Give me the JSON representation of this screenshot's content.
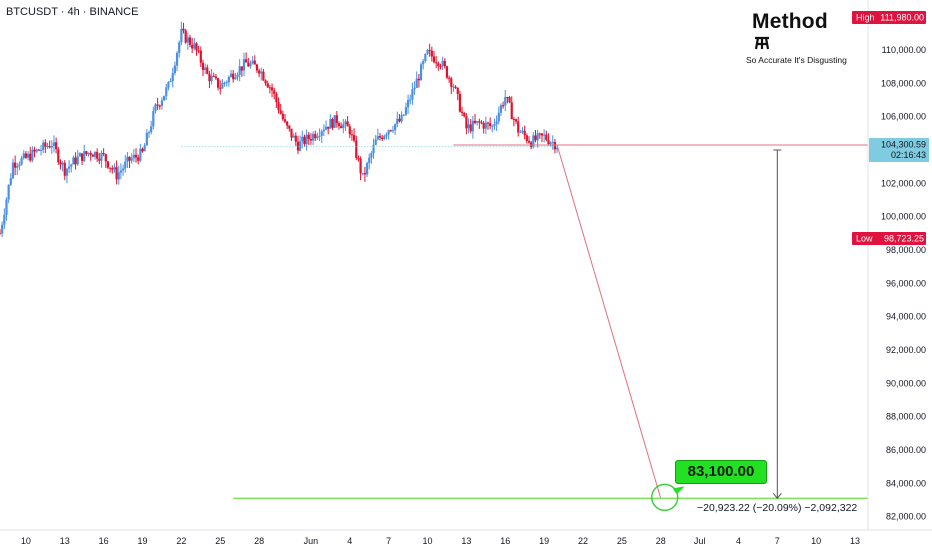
{
  "header": {
    "symbol_title": "BTCUSDT · 4h · BINANCE"
  },
  "brand": {
    "name": "Method",
    "tagline": "So Accurate It's Disgusting"
  },
  "colors": {
    "up_candle": "#4a90e2",
    "down_candle": "#e0122e",
    "target_line": "#7ee05a",
    "projection_line": "#e07080",
    "price_tag_current": "#7fcbe0",
    "tag_high_low": "#e0123e"
  },
  "chart_data": {
    "type": "candlestick",
    "symbol": "BTCUSDT",
    "interval": "4h",
    "exchange": "BINANCE",
    "ylim": [
      81200,
      113000
    ],
    "y_ticks": [
      82000,
      84000,
      86000,
      88000,
      90000,
      92000,
      94000,
      96000,
      98000,
      100000,
      102000,
      104000,
      106000,
      108000,
      110000
    ],
    "y_tick_labels": [
      "82,000.00",
      "84,000.00",
      "86,000.00",
      "88,000.00",
      "90,000.00",
      "92,000.00",
      "94,000.00",
      "96,000.00",
      "98,000.00",
      "100,000.00",
      "102,000.00",
      "104,000.00",
      "106,000.00",
      "108,000.00",
      "110,000.00"
    ],
    "x_ticks": [
      "2025-05-10",
      "2025-05-13",
      "2025-05-16",
      "2025-05-19",
      "2025-05-22",
      "2025-05-25",
      "2025-05-28",
      "2025-06-01",
      "2025-06-04",
      "2025-06-07",
      "2025-06-10",
      "2025-06-13",
      "2025-06-16",
      "2025-06-19",
      "2025-06-22",
      "2025-06-25",
      "2025-06-28",
      "2025-07-01",
      "2025-07-04",
      "2025-07-07",
      "2025-07-10",
      "2025-07-13"
    ],
    "x_tick_labels": [
      "10",
      "13",
      "16",
      "19",
      "22",
      "25",
      "28",
      "Jun",
      "4",
      "7",
      "10",
      "13",
      "16",
      "19",
      "22",
      "25",
      "28",
      "Jul",
      "4",
      "7",
      "10",
      "13"
    ],
    "x_range": [
      "2025-05-08",
      "2025-07-14"
    ],
    "price_path": [
      [
        "2025-05-08",
        99000
      ],
      [
        "2025-05-09",
        103200
      ],
      [
        "2025-05-10",
        103500
      ],
      [
        "2025-05-11",
        104000
      ],
      [
        "2025-05-12",
        104400
      ],
      [
        "2025-05-13",
        102800
      ],
      [
        "2025-05-14",
        103500
      ],
      [
        "2025-05-15",
        103900
      ],
      [
        "2025-05-16",
        103600
      ],
      [
        "2025-05-17",
        102500
      ],
      [
        "2025-05-18",
        103400
      ],
      [
        "2025-05-19",
        103800
      ],
      [
        "2025-05-20",
        106500
      ],
      [
        "2025-05-21",
        107800
      ],
      [
        "2025-05-22",
        111000
      ],
      [
        "2025-05-23",
        110200
      ],
      [
        "2025-05-24",
        108500
      ],
      [
        "2025-05-25",
        107800
      ],
      [
        "2025-05-26",
        108600
      ],
      [
        "2025-05-27",
        109200
      ],
      [
        "2025-05-28",
        108900
      ],
      [
        "2025-05-29",
        107600
      ],
      [
        "2025-05-30",
        105500
      ],
      [
        "2025-05-31",
        104300
      ],
      [
        "2025-06-01",
        104800
      ],
      [
        "2025-06-02",
        105400
      ],
      [
        "2025-06-03",
        105800
      ],
      [
        "2025-06-04",
        105200
      ],
      [
        "2025-06-05",
        102300
      ],
      [
        "2025-06-06",
        104500
      ],
      [
        "2025-06-07",
        105300
      ],
      [
        "2025-06-08",
        105800
      ],
      [
        "2025-06-09",
        107800
      ],
      [
        "2025-06-10",
        109800
      ],
      [
        "2025-06-11",
        109300
      ],
      [
        "2025-06-12",
        107900
      ],
      [
        "2025-06-13",
        105300
      ],
      [
        "2025-06-14",
        105600
      ],
      [
        "2025-06-15",
        105400
      ],
      [
        "2025-06-16",
        107200
      ],
      [
        "2025-06-17",
        105200
      ],
      [
        "2025-06-18",
        104500
      ],
      [
        "2025-06-19",
        104800
      ],
      [
        "2025-06-20",
        104300
      ]
    ],
    "current_price": {
      "value": 104300.59,
      "label": "104,300.59",
      "countdown": "02:16:43"
    },
    "high": {
      "label": "High",
      "value": 111980.0,
      "value_label": "111,980.00"
    },
    "low": {
      "label": "Low",
      "value": 98723.25,
      "value_label": "98,723.25"
    },
    "target": {
      "value": 83100,
      "label": "83,100.00",
      "date": "2025-06-28"
    },
    "projection": {
      "from_date": "2025-06-20",
      "from_value": 104300,
      "to_date": "2025-06-28",
      "to_value": 83100
    },
    "measure": {
      "x_date": "2025-07-07",
      "from_value": 104000,
      "to_value": 83100,
      "text": "−20,923.22 (−20.09%) −2,092,322"
    },
    "dotted_level": 104200
  }
}
